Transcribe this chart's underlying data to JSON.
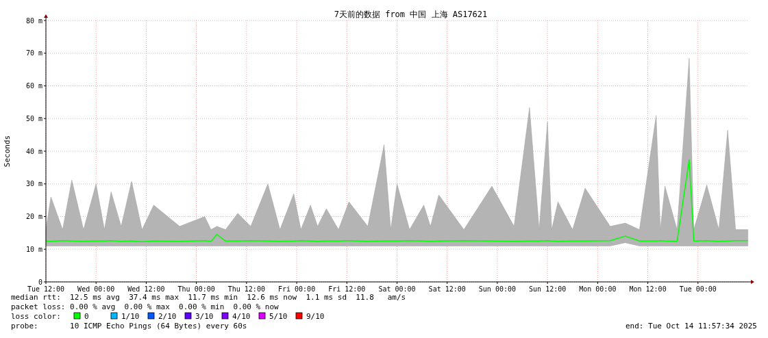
{
  "chart_data": {
    "type": "line",
    "title": "7天前的数据 from 中国 上海 AS17621",
    "ylabel": "Seconds",
    "xlim": [
      "2025-10-07T12:00",
      "2025-10-14T12:00"
    ],
    "xticks": [
      {
        "value": "2025-10-07T12:00",
        "label": "Tue 12:00"
      },
      {
        "value": "2025-10-08T00:00",
        "label": "Wed 00:00"
      },
      {
        "value": "2025-10-08T12:00",
        "label": "Wed 12:00"
      },
      {
        "value": "2025-10-09T00:00",
        "label": "Thu 00:00"
      },
      {
        "value": "2025-10-09T12:00",
        "label": "Thu 12:00"
      },
      {
        "value": "2025-10-10T00:00",
        "label": "Fri 00:00"
      },
      {
        "value": "2025-10-10T12:00",
        "label": "Fri 12:00"
      },
      {
        "value": "2025-10-11T00:00",
        "label": "Sat 00:00"
      },
      {
        "value": "2025-10-11T12:00",
        "label": "Sat 12:00"
      },
      {
        "value": "2025-10-12T00:00",
        "label": "Sun 00:00"
      },
      {
        "value": "2025-10-12T12:00",
        "label": "Sun 12:00"
      },
      {
        "value": "2025-10-13T00:00",
        "label": "Mon 00:00"
      },
      {
        "value": "2025-10-13T12:00",
        "label": "Mon 12:00"
      },
      {
        "value": "2025-10-14T00:00",
        "label": "Tue 00:00"
      }
    ],
    "ylim": [
      0,
      80
    ],
    "yticks": [
      0,
      {
        "value": 10,
        "label": "10 m"
      },
      {
        "value": 20,
        "label": "20 m"
      },
      {
        "value": 30,
        "label": "30 m"
      },
      {
        "value": 40,
        "label": "40 m"
      },
      {
        "value": 50,
        "label": "50 m"
      },
      {
        "value": 60,
        "label": "60 m"
      },
      {
        "value": 70,
        "label": "70 m"
      },
      {
        "value": 80,
        "label": "80 m"
      }
    ],
    "grid": true,
    "legend": "bottom left",
    "legend_title": "loss color:",
    "x": [
      "2025-10-07T12:00",
      "2025-10-07T13:12",
      "2025-10-07T16:00",
      "2025-10-07T18:12",
      "2025-10-07T21:00",
      "2025-10-08T00:00",
      "2025-10-08T02:00",
      "2025-10-08T03:36",
      "2025-10-08T06:00",
      "2025-10-08T08:30",
      "2025-10-08T11:00",
      "2025-10-08T13:48",
      "2025-10-08T20:00",
      "2025-10-09T02:00",
      "2025-10-09T03:30",
      "2025-10-09T04:54",
      "2025-10-09T07:00",
      "2025-10-09T09:54",
      "2025-10-09T13:00",
      "2025-10-09T17:06",
      "2025-10-09T20:00",
      "2025-10-09T23:18",
      "2025-10-10T01:00",
      "2025-10-10T03:18",
      "2025-10-10T05:00",
      "2025-10-10T07:06",
      "2025-10-10T10:00",
      "2025-10-10T12:30",
      "2025-10-10T17:00",
      "2025-10-10T20:54",
      "2025-10-10T22:30",
      "2025-10-11T00:00",
      "2025-10-11T03:00",
      "2025-10-11T06:24",
      "2025-10-11T08:00",
      "2025-10-11T10:00",
      "2025-10-11T16:00",
      "2025-10-11T22:42",
      "2025-10-12T04:00",
      "2025-10-12T07:42",
      "2025-10-12T10:00",
      "2025-10-12T12:00",
      "2025-10-12T13:00",
      "2025-10-12T14:30",
      "2025-10-12T18:00",
      "2025-10-12T21:00",
      "2025-10-13T03:00",
      "2025-10-13T06:36",
      "2025-10-13T10:00",
      "2025-10-13T14:00",
      "2025-10-13T15:00",
      "2025-10-13T16:06",
      "2025-10-13T19:00",
      "2025-10-13T21:54",
      "2025-10-13T23:00",
      "2025-10-14T02:06",
      "2025-10-14T05:00",
      "2025-10-14T07:06",
      "2025-10-14T09:00",
      "2025-10-14T11:57"
    ],
    "series": [
      {
        "name": "0",
        "color": "#00ff00",
        "values": [
          12.5,
          12.4,
          12.6,
          12.5,
          12.4,
          12.5,
          12.5,
          12.6,
          12.4,
          12.5,
          12.3,
          12.5,
          12.4,
          12.6,
          12.4,
          14.5,
          12.5,
          12.5,
          12.6,
          12.5,
          12.4,
          12.5,
          12.6,
          12.5,
          12.4,
          12.5,
          12.5,
          12.6,
          12.4,
          12.5,
          12.5,
          12.5,
          12.6,
          12.5,
          12.4,
          12.5,
          12.6,
          12.5,
          12.4,
          12.5,
          12.5,
          12.6,
          12.5,
          12.4,
          12.5,
          12.5,
          12.6,
          14,
          12.5,
          12.5,
          12.6,
          12.5,
          12.4,
          37.4,
          12.5,
          12.6,
          12.4,
          12.5,
          12.6,
          12.6
        ],
        "lower": [
          11,
          11,
          11,
          11,
          11,
          11,
          11,
          11,
          11,
          11,
          11,
          11,
          11,
          11,
          11,
          11,
          11,
          11,
          11,
          11,
          11,
          11,
          11,
          11,
          11,
          11,
          11,
          11,
          11,
          11,
          11,
          11,
          11,
          11,
          11,
          11,
          11,
          11,
          11,
          11,
          11,
          11,
          11,
          11,
          11,
          11,
          11,
          12,
          11,
          11,
          11,
          11,
          11,
          11,
          11,
          11,
          11,
          11,
          11,
          11
        ],
        "upper": [
          16,
          26,
          16,
          31.2,
          16,
          30,
          16,
          27.6,
          17,
          30.8,
          16,
          23.5,
          17,
          20,
          16,
          17,
          16,
          21,
          17,
          30,
          16,
          27,
          16,
          23.5,
          17,
          22.4,
          16,
          24.5,
          17,
          42,
          16,
          30,
          16,
          23.5,
          17,
          26.6,
          16,
          29.3,
          17,
          53.4,
          16,
          49,
          16,
          24.5,
          16,
          28.7,
          17,
          18,
          16,
          51,
          16,
          29.3,
          16,
          68.5,
          16,
          29.7,
          16,
          46.5,
          16,
          16
        ]
      },
      {
        "name": "1/10",
        "color": "#00b8ff",
        "values": [
          null,
          null,
          null,
          null,
          null,
          null,
          null,
          null,
          null,
          null,
          null,
          null,
          null,
          null,
          null,
          null,
          null,
          null,
          null,
          null,
          null,
          null,
          null,
          null,
          null,
          null,
          null,
          null,
          null,
          null,
          null,
          null,
          null,
          null,
          null,
          null,
          null,
          null,
          null,
          null,
          null,
          null,
          null,
          null,
          null,
          null,
          null,
          null,
          null,
          null,
          null,
          null,
          null,
          null,
          null,
          null,
          null,
          null,
          null,
          null
        ]
      },
      {
        "name": "2/10",
        "color": "#0059ff",
        "values": [
          null,
          null,
          null,
          null,
          null,
          null,
          null,
          null,
          null,
          null,
          null,
          null,
          null,
          null,
          null,
          null,
          null,
          null,
          null,
          null,
          null,
          null,
          null,
          null,
          null,
          null,
          null,
          null,
          null,
          null,
          null,
          null,
          null,
          null,
          null,
          null,
          null,
          null,
          null,
          null,
          null,
          null,
          null,
          null,
          null,
          null,
          null,
          null,
          null,
          null,
          null,
          null,
          null,
          null,
          null,
          null,
          null,
          null,
          null,
          null
        ]
      },
      {
        "name": "3/10",
        "color": "#5e00ff",
        "values": [
          null,
          null,
          null,
          null,
          null,
          null,
          null,
          null,
          null,
          null,
          null,
          null,
          null,
          null,
          null,
          null,
          null,
          null,
          null,
          null,
          null,
          null,
          null,
          null,
          null,
          null,
          null,
          null,
          null,
          null,
          null,
          null,
          null,
          null,
          null,
          null,
          null,
          null,
          null,
          null,
          null,
          null,
          null,
          null,
          null,
          null,
          null,
          null,
          null,
          null,
          null,
          null,
          null,
          null,
          null,
          null,
          null,
          null,
          null,
          null
        ]
      },
      {
        "name": "4/10",
        "color": "#7e00ff",
        "values": [
          null,
          null,
          null,
          null,
          null,
          null,
          null,
          null,
          null,
          null,
          null,
          null,
          null,
          null,
          null,
          null,
          null,
          null,
          null,
          null,
          null,
          null,
          null,
          null,
          null,
          null,
          null,
          null,
          null,
          null,
          null,
          null,
          null,
          null,
          null,
          null,
          null,
          null,
          null,
          null,
          null,
          null,
          null,
          null,
          null,
          null,
          null,
          null,
          null,
          null,
          null,
          null,
          null,
          null,
          null,
          null,
          null,
          null,
          null,
          null
        ]
      },
      {
        "name": "5/10",
        "color": "#dd00ff",
        "values": [
          null,
          null,
          null,
          null,
          null,
          null,
          null,
          null,
          null,
          null,
          null,
          null,
          null,
          null,
          null,
          null,
          null,
          null,
          null,
          null,
          null,
          null,
          null,
          null,
          null,
          null,
          null,
          null,
          null,
          null,
          null,
          null,
          null,
          null,
          null,
          null,
          null,
          null,
          null,
          null,
          null,
          null,
          null,
          null,
          null,
          null,
          null,
          null,
          null,
          null,
          null,
          null,
          null,
          null,
          null,
          null,
          null,
          null,
          null,
          null
        ]
      },
      {
        "name": "9/10",
        "color": "#ff0000",
        "values": [
          null,
          null,
          null,
          null,
          null,
          null,
          null,
          null,
          null,
          null,
          null,
          null,
          null,
          null,
          null,
          null,
          null,
          null,
          null,
          null,
          null,
          null,
          null,
          null,
          null,
          null,
          null,
          null,
          null,
          null,
          null,
          null,
          null,
          null,
          null,
          null,
          null,
          null,
          null,
          null,
          null,
          null,
          null,
          null,
          null,
          null,
          null,
          null,
          null,
          null,
          null,
          null,
          null,
          null,
          null,
          null,
          null,
          null,
          null,
          null
        ]
      }
    ],
    "annotations": [
      "median rtt:  12.5 ms avg  37.4 ms max  11.7 ms min  12.6 ms now  1.1 ms sd  11.8   am/s",
      "packet loss: 0.00 % avg  0.00 % max  0.00 % min  0.00 % now",
      "probe:       10 ICMP Echo Pings (64 Bytes) every 60s",
      "end: Tue Oct 14 11:57:34 2025"
    ]
  }
}
